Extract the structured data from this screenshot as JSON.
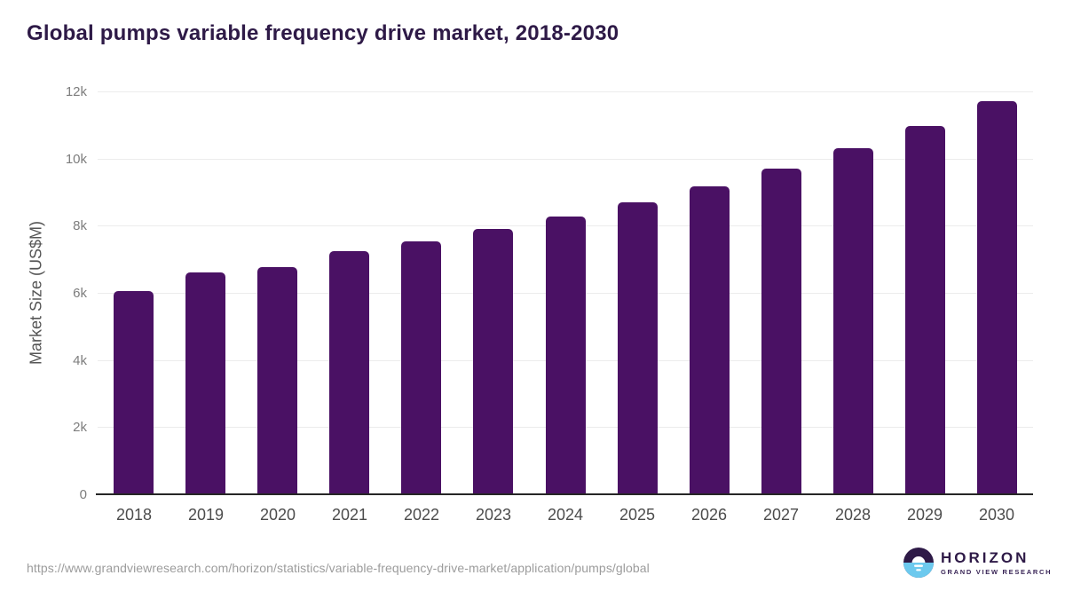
{
  "page": {
    "title": "Global pumps variable frequency drive market, 2018-2030",
    "source_url": "https://www.grandviewresearch.com/horizon/statistics/variable-frequency-drive-market/application/pumps/global"
  },
  "chart_data": {
    "type": "bar",
    "title": "Global pumps variable frequency drive market, 2018-2030",
    "categories": [
      "2018",
      "2019",
      "2020",
      "2021",
      "2022",
      "2023",
      "2024",
      "2025",
      "2026",
      "2027",
      "2028",
      "2029",
      "2030"
    ],
    "values": [
      6050,
      6600,
      6770,
      7240,
      7530,
      7890,
      8270,
      8700,
      9170,
      9690,
      10310,
      10970,
      11720
    ],
    "xlabel": "",
    "ylabel": "Market Size (US$M)",
    "ylim": [
      0,
      12000
    ],
    "yticks": [
      {
        "value": 0,
        "label": "0"
      },
      {
        "value": 2000,
        "label": "2k"
      },
      {
        "value": 4000,
        "label": "4k"
      },
      {
        "value": 6000,
        "label": "6k"
      },
      {
        "value": 8000,
        "label": "8k"
      },
      {
        "value": 10000,
        "label": "10k"
      },
      {
        "value": 12000,
        "label": "12k"
      }
    ],
    "grid": true,
    "legend_position": "none",
    "bar_color": "#4a1164"
  },
  "logo": {
    "brand": "HORIZON",
    "subbrand": "GRAND VIEW RESEARCH"
  },
  "colors": {
    "background": "#ffffff",
    "title_text": "#2e1a47",
    "bar": "#4a1164",
    "gridline": "#ececec",
    "axis_line": "#262626",
    "ytick_text": "#7d7d7d",
    "xtick_text": "#4c4c4c",
    "ylabel_text": "#555555",
    "url_text": "#9c9c9c",
    "logo_purple": "#2e1a47",
    "logo_blue": "#6cc9ee"
  }
}
